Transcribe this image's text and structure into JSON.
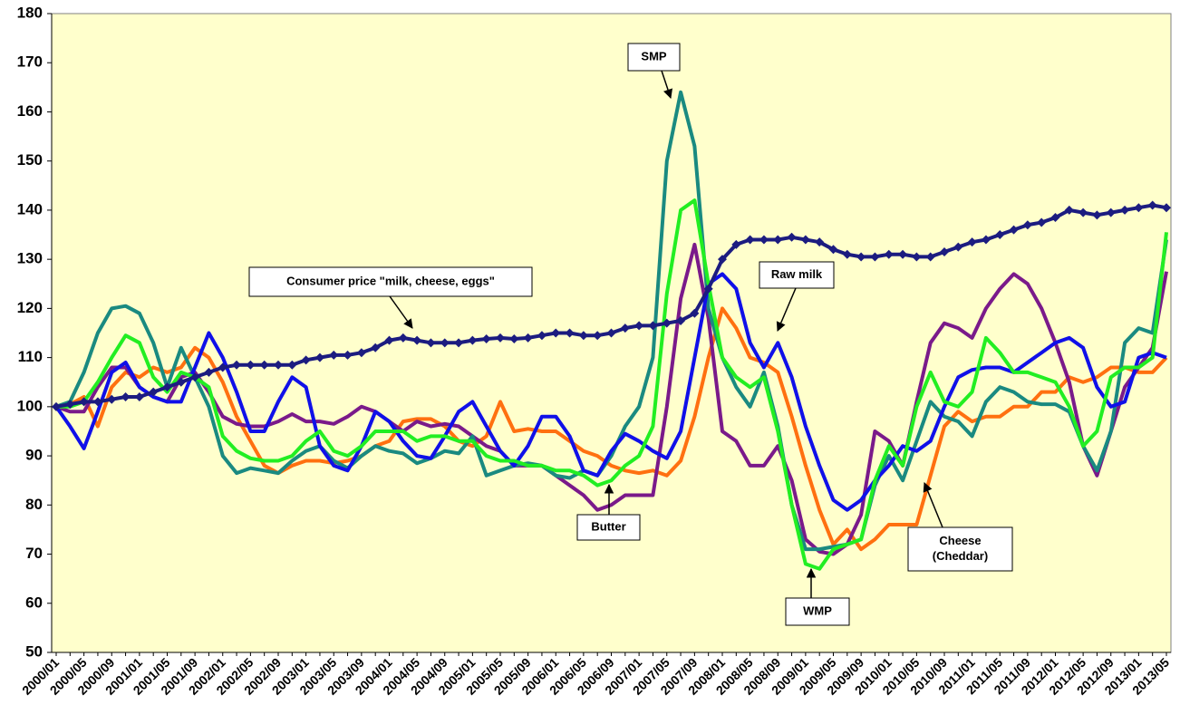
{
  "chart_data": {
    "type": "line",
    "categories": [
      "2000/01",
      null,
      "2000/05",
      null,
      "2000/09",
      null,
      "2001/01",
      null,
      "2001/05",
      null,
      "2001/09",
      null,
      "2002/01",
      null,
      "2002/05",
      null,
      "2002/09",
      null,
      "2003/01",
      null,
      "2003/05",
      null,
      "2003/09",
      null,
      "2004/01",
      null,
      "2004/05",
      null,
      "2004/09",
      null,
      "2005/01",
      null,
      "2005/05",
      null,
      "2005/09",
      null,
      "2006/01",
      null,
      "2006/05",
      null,
      "2006/09",
      null,
      "2007/01",
      null,
      "2007/05",
      null,
      "2007/09",
      null,
      "2008/01",
      null,
      "2008/05",
      null,
      "2008/09",
      null,
      "2009/01",
      null,
      "2009/05",
      null,
      "2009/09",
      null,
      "2010/01",
      null,
      "2010/05",
      null,
      "2010/09",
      null,
      "2011/01",
      null,
      "2011/05",
      null,
      "2011/09",
      null,
      "2012/01",
      null,
      "2012/05",
      null,
      "2012/09",
      null,
      "2013/01",
      null,
      "2013/05"
    ],
    "ylim": [
      50,
      180
    ],
    "yticks": [
      50,
      60,
      70,
      80,
      90,
      100,
      110,
      120,
      130,
      140,
      150,
      160,
      170,
      180
    ],
    "background": "#ffffcc",
    "series": [
      {
        "color": "#ff7010",
        "values": [
          100,
          100.5,
          102,
          96,
          104,
          107,
          106,
          108,
          107,
          108,
          112,
          110,
          105,
          98,
          93,
          88,
          86.5,
          88,
          89,
          89,
          88.5,
          89,
          90,
          92,
          93,
          97,
          97.5,
          97.5,
          96,
          93,
          92,
          94,
          101,
          95,
          95.5,
          95,
          95,
          93,
          91,
          90,
          88,
          87,
          86.5,
          87,
          86,
          89,
          98,
          110,
          120,
          116,
          110,
          109,
          107,
          98,
          88,
          79,
          72,
          75,
          71,
          73,
          76,
          76,
          76,
          86,
          96,
          99,
          97,
          98,
          98,
          100,
          100,
          103,
          103,
          106,
          105,
          106,
          108,
          108,
          107,
          107,
          110
        ]
      },
      {
        "color": "#7a1a8a",
        "values": [
          100,
          99,
          99,
          104,
          108,
          108,
          104,
          102,
          101,
          106,
          107,
          103,
          98,
          96.5,
          96,
          96,
          97,
          98.5,
          97,
          97,
          96.5,
          98,
          100,
          99,
          97,
          95,
          97,
          96,
          96.5,
          96,
          94,
          92,
          91,
          88,
          88,
          88,
          86,
          84,
          82,
          79,
          80,
          82,
          82,
          82,
          100,
          122,
          133,
          118,
          95,
          93,
          88,
          88,
          92,
          85,
          73,
          70.5,
          70,
          72,
          78,
          95,
          93,
          88,
          101,
          113,
          117,
          116,
          114,
          120,
          124,
          127,
          125,
          120,
          113,
          105,
          92,
          86,
          95,
          104,
          108,
          112,
          127.5
        ]
      },
      {
        "color": "#1a8a80",
        "values": [
          100,
          101,
          107,
          115,
          120,
          120.5,
          119,
          113,
          104,
          112,
          106,
          100,
          90,
          86.5,
          87.5,
          87,
          86.5,
          89,
          91,
          92,
          89,
          87.5,
          90,
          92,
          91,
          90.5,
          88.5,
          89.5,
          91,
          90.5,
          94,
          86,
          87,
          88,
          88.5,
          88,
          86,
          85.5,
          87,
          86,
          90,
          96,
          100,
          110,
          150,
          164,
          153,
          120,
          110,
          104,
          100,
          107,
          96,
          80,
          71,
          71,
          71.5,
          72,
          73,
          84,
          90,
          85,
          93,
          101,
          98,
          97,
          94,
          101,
          104,
          103,
          101,
          100.5,
          100.5,
          99,
          92,
          87,
          95,
          113,
          116,
          115,
          134
        ]
      },
      {
        "color": "#1010e8",
        "values": [
          100,
          96,
          91.5,
          99,
          107,
          109,
          104,
          102,
          101,
          101,
          108,
          115,
          110,
          103,
          95,
          95,
          101,
          106,
          104,
          92,
          88,
          87,
          92,
          99,
          97,
          93,
          90,
          89.5,
          94,
          99,
          101,
          96,
          91,
          88,
          92,
          98,
          98,
          94,
          87,
          86,
          91,
          94.5,
          93,
          91,
          89.5,
          95,
          110,
          125,
          127,
          124,
          113,
          108,
          113,
          106,
          96,
          88,
          81,
          79,
          81,
          85,
          88,
          92,
          91,
          93,
          100,
          106,
          107.5,
          108,
          108,
          107,
          109,
          111,
          113,
          114,
          112,
          104,
          100,
          101,
          110,
          111,
          110
        ]
      },
      {
        "color": "#22ee22",
        "values": [
          100,
          100,
          101,
          105,
          110,
          114.5,
          113,
          106,
          103,
          107,
          106,
          104,
          94,
          91,
          89.5,
          89,
          89,
          90,
          93,
          95,
          91,
          90,
          92,
          95,
          95,
          95,
          93,
          94,
          94,
          93,
          93,
          90,
          89,
          89,
          88,
          88,
          87,
          87,
          86,
          84,
          85,
          88,
          90,
          96,
          123,
          140,
          142,
          125,
          110,
          106,
          104,
          106,
          95,
          80,
          68,
          67,
          71,
          72,
          73,
          85,
          92,
          88,
          100,
          107,
          101,
          100,
          103,
          114,
          111,
          107,
          107,
          106,
          105,
          100,
          92,
          95,
          106,
          108,
          108,
          110,
          135.5
        ]
      },
      {
        "color": "#1c1c80",
        "marker": "diamond",
        "values": [
          100,
          100.5,
          101,
          101,
          101.5,
          102,
          102,
          103,
          104,
          105,
          106,
          107,
          108,
          108.5,
          108.5,
          108.5,
          108.5,
          108.5,
          109.5,
          110,
          110.5,
          110.5,
          111,
          112,
          113.5,
          114,
          113.5,
          113,
          113,
          113,
          113.5,
          113.8,
          114,
          113.8,
          114,
          114.5,
          115,
          115,
          114.5,
          114.5,
          115,
          116,
          116.5,
          116.5,
          117,
          117.5,
          119,
          124,
          130,
          133,
          134,
          134,
          134,
          134.5,
          134,
          133.5,
          132,
          131,
          130.5,
          130.5,
          131,
          131,
          130.5,
          130.5,
          131.5,
          132.5,
          133.5,
          134,
          135,
          136,
          137,
          137.5,
          138.5,
          140,
          139.5,
          139,
          139.5,
          140,
          140.5,
          141,
          140.5
        ]
      }
    ],
    "annotations": [
      {
        "lines": [
          "SMP"
        ]
      },
      {
        "lines": [
          "Consumer price \"milk, cheese, eggs\""
        ]
      },
      {
        "lines": [
          "Raw milk"
        ]
      },
      {
        "lines": [
          "Butter"
        ]
      },
      {
        "lines": [
          "Cheese",
          "(Cheddar)"
        ]
      },
      {
        "lines": [
          "WMP"
        ]
      }
    ]
  }
}
